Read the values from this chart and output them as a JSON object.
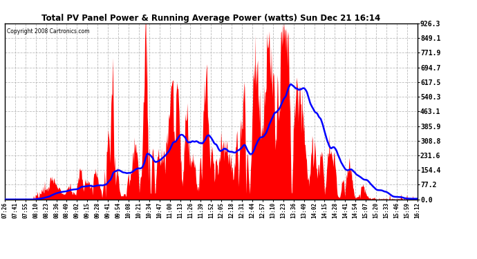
{
  "title": "Total PV Panel Power & Running Average Power (watts) Sun Dec 21 16:14",
  "copyright": "Copyright 2008 Cartronics.com",
  "yticks": [
    0.0,
    77.2,
    154.4,
    231.6,
    308.8,
    385.9,
    463.1,
    540.3,
    617.5,
    694.7,
    771.9,
    849.1,
    926.3
  ],
  "ymax": 926.3,
  "ymin": 0.0,
  "fill_color": "#FF0000",
  "line_color": "#0000FF",
  "background_color": "#FFFFFF",
  "grid_color": "#AAAAAA",
  "xtick_labels": [
    "07:26",
    "07:41",
    "07:55",
    "08:10",
    "08:23",
    "08:36",
    "08:49",
    "09:02",
    "09:15",
    "09:28",
    "09:41",
    "09:54",
    "10:08",
    "10:21",
    "10:34",
    "10:47",
    "11:00",
    "11:13",
    "11:26",
    "11:39",
    "11:52",
    "12:05",
    "12:18",
    "12:31",
    "12:44",
    "12:57",
    "13:10",
    "13:23",
    "13:36",
    "13:49",
    "14:02",
    "14:15",
    "14:28",
    "14:41",
    "14:54",
    "15:07",
    "15:20",
    "15:33",
    "15:46",
    "15:59",
    "16:12"
  ],
  "num_points": 820
}
